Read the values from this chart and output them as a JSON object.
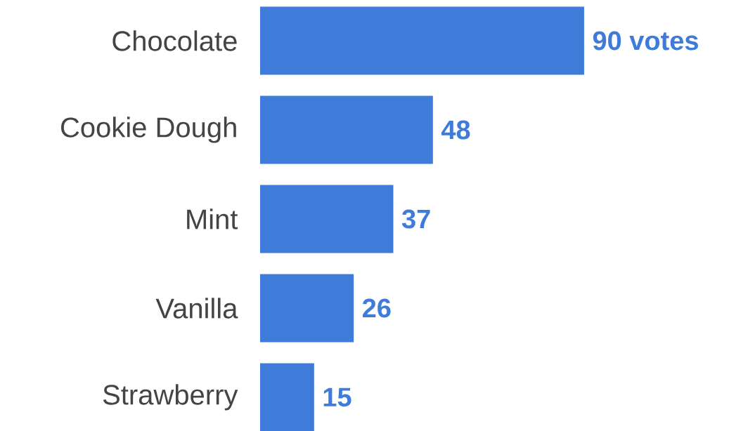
{
  "chart_data": {
    "type": "bar",
    "orientation": "horizontal",
    "tick_labels": "y",
    "categories": [
      "Chocolate",
      "Cookie Dough",
      "Mint",
      "Vanilla",
      "Strawberry"
    ],
    "values": [
      90,
      48,
      37,
      26,
      15
    ],
    "color": "#3f7bd9",
    "value_labels": [
      "90 votes",
      "48",
      "37",
      "26",
      "15"
    ]
  }
}
